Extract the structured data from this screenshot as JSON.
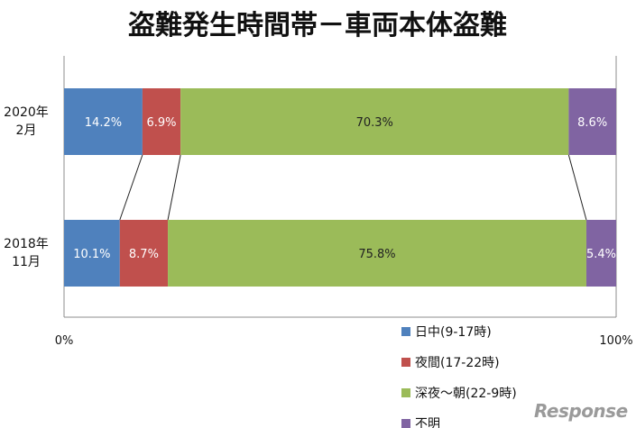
{
  "watermark": "Response",
  "chart_data": {
    "type": "bar",
    "orientation": "horizontal",
    "stacked": true,
    "title": "盗難発生時間帯－車両本体盗難",
    "categories": [
      [
        "2020年",
        "2月"
      ],
      [
        "2018年",
        "11月"
      ]
    ],
    "series": [
      {
        "name": "日中(9-17時)",
        "color": "#4f81bd",
        "values": [
          14.2,
          10.1
        ]
      },
      {
        "name": "夜間(17-22時)",
        "color": "#c0504d",
        "values": [
          6.9,
          8.7
        ]
      },
      {
        "name": "深夜～朝(22-9時)",
        "color": "#9bbb59",
        "values": [
          70.3,
          75.8
        ]
      },
      {
        "name": "不明",
        "color": "#8064a2",
        "values": [
          8.6,
          5.4
        ]
      }
    ],
    "data_labels": [
      [
        "14.2%",
        "6.9%",
        "70.3%",
        "8.6%"
      ],
      [
        "10.1%",
        "8.7%",
        "75.8%",
        "5.4%"
      ]
    ],
    "label_colors": [
      "#ffffff",
      "#ffffff",
      "#222222",
      "#ffffff"
    ],
    "x_ticks": [
      "0%",
      "100%"
    ],
    "xlim": [
      0,
      100
    ],
    "legend_position": "bottom-right"
  }
}
